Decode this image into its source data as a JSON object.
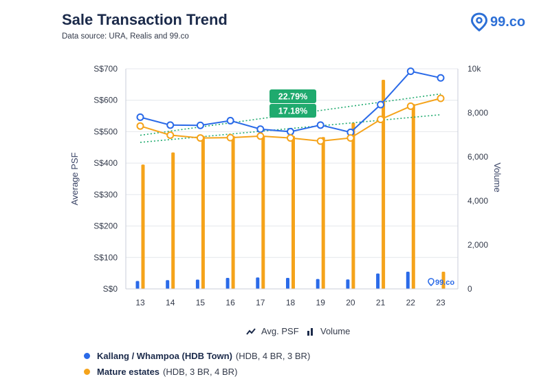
{
  "header": {
    "title": "Sale Transaction Trend",
    "subtitle": "Data source: URA, Realis and 99.co",
    "brand": "99.co"
  },
  "colors": {
    "blue": "#2a6ae8",
    "orange": "#f5a31a",
    "green": "#1faa6e",
    "grid": "#e4e7ec"
  },
  "toggles": {
    "avg_psf": "Avg. PSF",
    "volume": "Volume"
  },
  "legend": [
    {
      "name": "Kallang / Whampoa (HDB Town)",
      "detail": "(HDB, 4 BR, 3 BR)",
      "color": "#2a6ae8"
    },
    {
      "name": "Mature estates",
      "detail": "(HDB, 3 BR, 4 BR)",
      "color": "#f5a31a"
    }
  ],
  "watermark": "99.co",
  "chart_data": {
    "type": "line+bar",
    "categories": [
      "13",
      "14",
      "15",
      "16",
      "17",
      "18",
      "19",
      "20",
      "21",
      "22",
      "23"
    ],
    "y_left": {
      "label": "Average PSF",
      "range": [
        0,
        700
      ],
      "ticks": [
        0,
        100,
        200,
        300,
        400,
        500,
        600,
        700
      ],
      "tick_labels": [
        "S$0",
        "S$100",
        "S$200",
        "S$300",
        "S$400",
        "S$500",
        "S$600",
        "S$700"
      ]
    },
    "y_right": {
      "label": "Volume",
      "range": [
        0,
        10000
      ],
      "ticks": [
        0,
        2000,
        4000,
        6000,
        8000,
        10000
      ],
      "tick_labels": [
        "0",
        "2,000",
        "4,000",
        "6,000",
        "8,000",
        "10k"
      ]
    },
    "lines": [
      {
        "name": "Kallang / Whampoa (HDB Town)",
        "values": [
          546,
          521,
          520,
          535,
          508,
          500,
          521,
          498,
          586,
          692,
          671
        ]
      },
      {
        "name": "Mature estates",
        "values": [
          518,
          489,
          480,
          481,
          486,
          480,
          470,
          480,
          539,
          581,
          606
        ]
      }
    ],
    "bars": [
      {
        "name": "Kallang / Whampoa (HDB Town)",
        "values": [
          360,
          400,
          420,
          500,
          520,
          500,
          450,
          430,
          700,
          780,
          null
        ]
      },
      {
        "name": "Mature estates",
        "values": [
          5650,
          6200,
          6950,
          6950,
          6950,
          6950,
          6900,
          7550,
          9500,
          8400,
          780
        ]
      }
    ],
    "trendlines": [
      {
        "series": "Kallang / Whampoa (HDB Town)",
        "label": "22.79%"
      },
      {
        "series": "Mature estates",
        "label": "17.18%"
      }
    ],
    "grid": "horizontal",
    "legend_position": "bottom"
  }
}
